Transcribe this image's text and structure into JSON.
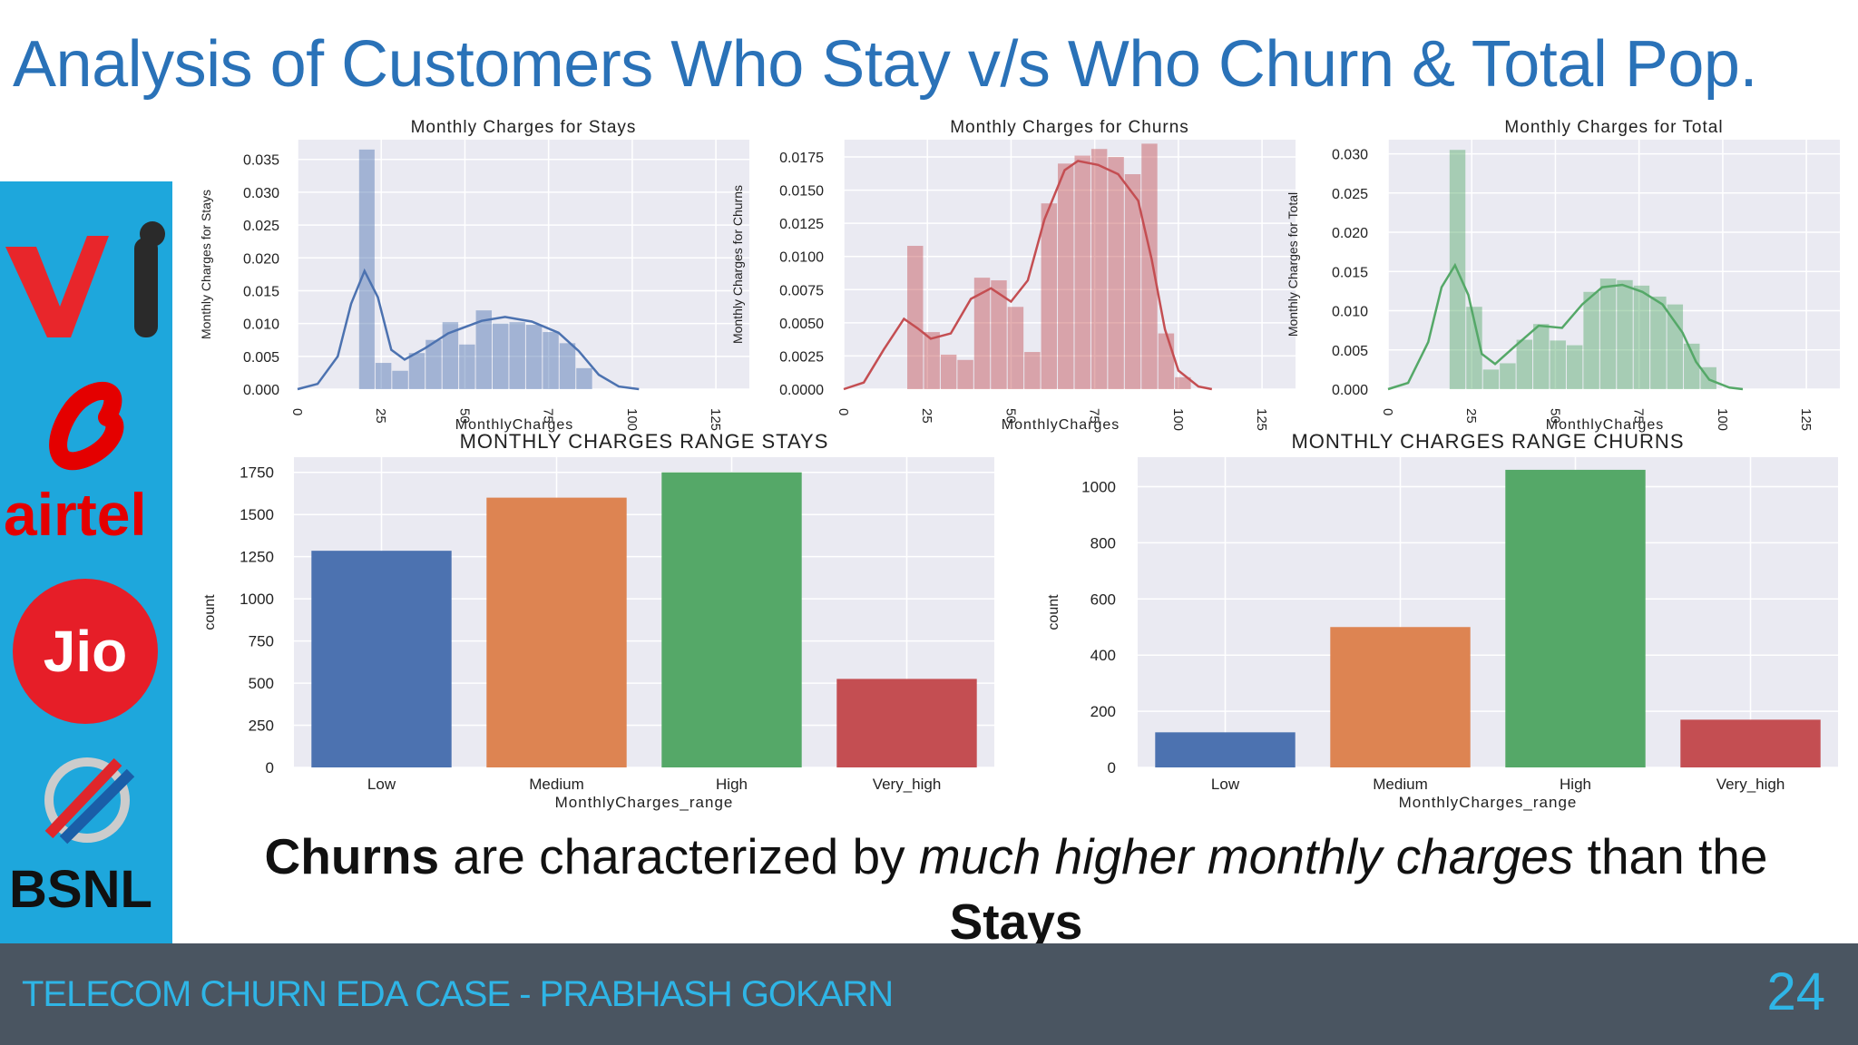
{
  "slide": {
    "title": "Analysis of Customers Who Stay v/s Who Churn & Total Pop.",
    "caption_parts": [
      "Churns",
      " are characterized  by ",
      "much higher monthly charges",
      " than the ",
      "Stays"
    ],
    "footer_text": "TELECOM CHURN EDA CASE - PRABHASH GOKARN",
    "page_number": "24",
    "logos": [
      "Vi",
      "airtel",
      "Jio",
      "BSNL"
    ]
  },
  "colors": {
    "title": "#2a72b8",
    "footer_bg": "#4a5561",
    "footer_text": "#2fb5e6",
    "logo_strip": "#1ea7dc",
    "plot_bg": "#eaeaf2",
    "stays": "#4c72b0",
    "churns": "#c44e52",
    "total": "#55a868",
    "bar_colors": [
      "#4c72b0",
      "#dd8452",
      "#55a868",
      "#c44e52"
    ]
  },
  "chart_data": [
    {
      "type": "bar",
      "subtype": "histogram-with-kde",
      "title": "Monthly Charges for Stays",
      "xlabel": "MonthlyCharges",
      "ylabel": "Monthly Charges for Stays",
      "color": "#4c72b0",
      "xlim": [
        0,
        135
      ],
      "ylim": [
        0,
        0.038
      ],
      "xticks": [
        0,
        25,
        50,
        75,
        100,
        125
      ],
      "xtick_labels": [
        "0",
        "25",
        "50",
        "75",
        "100",
        "125"
      ],
      "yticks": [
        0,
        0.005,
        0.01,
        0.015,
        0.02,
        0.025,
        0.03,
        0.035
      ],
      "ytick_labels": [
        "0.000",
        "0.005",
        "0.010",
        "0.015",
        "0.020",
        "0.025",
        "0.030",
        "0.035"
      ],
      "bins": [
        {
          "x0": 18.25,
          "x1": 23.15,
          "y": 0.0365
        },
        {
          "x0": 23.15,
          "x1": 28.15,
          "y": 0.004
        },
        {
          "x0": 28.15,
          "x1": 33.15,
          "y": 0.0028
        },
        {
          "x0": 33.15,
          "x1": 38.15,
          "y": 0.0055
        },
        {
          "x0": 38.15,
          "x1": 43.15,
          "y": 0.0075
        },
        {
          "x0": 43.15,
          "x1": 48.15,
          "y": 0.0102
        },
        {
          "x0": 48.15,
          "x1": 53.15,
          "y": 0.0068
        },
        {
          "x0": 53.15,
          "x1": 58.15,
          "y": 0.012
        },
        {
          "x0": 58.15,
          "x1": 63.15,
          "y": 0.01
        },
        {
          "x0": 63.15,
          "x1": 68.15,
          "y": 0.0102
        },
        {
          "x0": 68.15,
          "x1": 73.15,
          "y": 0.0098
        },
        {
          "x0": 73.15,
          "x1": 78.15,
          "y": 0.0087
        },
        {
          "x0": 78.15,
          "x1": 83.15,
          "y": 0.007
        },
        {
          "x0": 83.15,
          "x1": 88.15,
          "y": 0.0032
        }
      ],
      "kde": [
        [
          0,
          0
        ],
        [
          6,
          0.0008
        ],
        [
          12,
          0.005
        ],
        [
          16,
          0.013
        ],
        [
          20,
          0.018
        ],
        [
          24,
          0.014
        ],
        [
          28,
          0.006
        ],
        [
          32,
          0.0045
        ],
        [
          38,
          0.0062
        ],
        [
          45,
          0.0085
        ],
        [
          55,
          0.0104
        ],
        [
          62,
          0.011
        ],
        [
          70,
          0.0103
        ],
        [
          78,
          0.0086
        ],
        [
          84,
          0.0058
        ],
        [
          90,
          0.0022
        ],
        [
          96,
          0.0004
        ],
        [
          102,
          0
        ]
      ]
    },
    {
      "type": "bar",
      "subtype": "histogram-with-kde",
      "title": "Monthly Charges for Churns",
      "xlabel": "MonthlyCharges",
      "ylabel": "Monthly Charges for Churns",
      "color": "#c44e52",
      "xlim": [
        0,
        135
      ],
      "ylim": [
        0,
        0.0188
      ],
      "xticks": [
        0,
        25,
        50,
        75,
        100,
        125
      ],
      "xtick_labels": [
        "0",
        "25",
        "50",
        "75",
        "100",
        "125"
      ],
      "yticks": [
        0,
        0.0025,
        0.005,
        0.0075,
        0.01,
        0.0125,
        0.015,
        0.0175
      ],
      "ytick_labels": [
        "0.0000",
        "0.0025",
        "0.0050",
        "0.0075",
        "0.0100",
        "0.0125",
        "0.0150",
        "0.0175"
      ],
      "bins": [
        {
          "x0": 18.85,
          "x1": 23.85,
          "y": 0.0108
        },
        {
          "x0": 23.85,
          "x1": 28.85,
          "y": 0.0043
        },
        {
          "x0": 28.85,
          "x1": 33.85,
          "y": 0.0026
        },
        {
          "x0": 33.85,
          "x1": 38.85,
          "y": 0.0022
        },
        {
          "x0": 38.85,
          "x1": 43.85,
          "y": 0.0084
        },
        {
          "x0": 43.85,
          "x1": 48.85,
          "y": 0.0082
        },
        {
          "x0": 48.85,
          "x1": 53.85,
          "y": 0.0062
        },
        {
          "x0": 53.85,
          "x1": 58.85,
          "y": 0.0028
        },
        {
          "x0": 58.85,
          "x1": 63.85,
          "y": 0.014
        },
        {
          "x0": 63.85,
          "x1": 68.85,
          "y": 0.017
        },
        {
          "x0": 68.85,
          "x1": 73.85,
          "y": 0.0176
        },
        {
          "x0": 73.85,
          "x1": 78.85,
          "y": 0.0181
        },
        {
          "x0": 78.85,
          "x1": 83.85,
          "y": 0.0175
        },
        {
          "x0": 83.85,
          "x1": 88.85,
          "y": 0.0162
        },
        {
          "x0": 88.85,
          "x1": 93.85,
          "y": 0.0185
        },
        {
          "x0": 93.85,
          "x1": 98.85,
          "y": 0.0042
        },
        {
          "x0": 98.85,
          "x1": 103.85,
          "y": 0.0009
        }
      ],
      "kde": [
        [
          0,
          0
        ],
        [
          6,
          0.0005
        ],
        [
          12,
          0.003
        ],
        [
          18,
          0.0053
        ],
        [
          22,
          0.0046
        ],
        [
          26,
          0.0038
        ],
        [
          32,
          0.0042
        ],
        [
          38,
          0.0068
        ],
        [
          44,
          0.0076
        ],
        [
          50,
          0.0066
        ],
        [
          55,
          0.0082
        ],
        [
          60,
          0.0128
        ],
        [
          66,
          0.0165
        ],
        [
          70,
          0.0172
        ],
        [
          76,
          0.0169
        ],
        [
          82,
          0.0162
        ],
        [
          88,
          0.0142
        ],
        [
          92,
          0.0098
        ],
        [
          96,
          0.0045
        ],
        [
          100,
          0.0014
        ],
        [
          106,
          0.0002
        ],
        [
          110,
          0
        ]
      ]
    },
    {
      "type": "bar",
      "subtype": "histogram-with-kde",
      "title": "Monthly Charges for Total",
      "xlabel": "MonthlyCharges",
      "ylabel": "Monthly Charges for Total",
      "color": "#55a868",
      "xlim": [
        0,
        135
      ],
      "ylim": [
        0,
        0.0318
      ],
      "xticks": [
        0,
        25,
        50,
        75,
        100,
        125
      ],
      "xtick_labels": [
        "0",
        "25",
        "50",
        "75",
        "100",
        "125"
      ],
      "yticks": [
        0,
        0.005,
        0.01,
        0.015,
        0.02,
        0.025,
        0.03
      ],
      "ytick_labels": [
        "0.000",
        "0.005",
        "0.010",
        "0.015",
        "0.020",
        "0.025",
        "0.030"
      ],
      "bins": [
        {
          "x0": 18.25,
          "x1": 23.25,
          "y": 0.0305
        },
        {
          "x0": 23.25,
          "x1": 28.25,
          "y": 0.0105
        },
        {
          "x0": 28.25,
          "x1": 33.25,
          "y": 0.0025
        },
        {
          "x0": 33.25,
          "x1": 38.25,
          "y": 0.0033
        },
        {
          "x0": 38.25,
          "x1": 43.25,
          "y": 0.0063
        },
        {
          "x0": 43.25,
          "x1": 48.25,
          "y": 0.0083
        },
        {
          "x0": 48.25,
          "x1": 53.25,
          "y": 0.0062
        },
        {
          "x0": 53.25,
          "x1": 58.25,
          "y": 0.0056
        },
        {
          "x0": 58.25,
          "x1": 63.25,
          "y": 0.0124
        },
        {
          "x0": 63.25,
          "x1": 68.25,
          "y": 0.0141
        },
        {
          "x0": 68.25,
          "x1": 73.25,
          "y": 0.0139
        },
        {
          "x0": 73.25,
          "x1": 78.25,
          "y": 0.0132
        },
        {
          "x0": 78.25,
          "x1": 83.25,
          "y": 0.0118
        },
        {
          "x0": 83.25,
          "x1": 88.25,
          "y": 0.0108
        },
        {
          "x0": 88.25,
          "x1": 93.25,
          "y": 0.0058
        },
        {
          "x0": 93.25,
          "x1": 98.25,
          "y": 0.0028
        }
      ],
      "kde": [
        [
          0,
          0
        ],
        [
          6,
          0.0008
        ],
        [
          12,
          0.006
        ],
        [
          16,
          0.013
        ],
        [
          20,
          0.0158
        ],
        [
          24,
          0.012
        ],
        [
          28,
          0.0045
        ],
        [
          32,
          0.0032
        ],
        [
          38,
          0.0055
        ],
        [
          45,
          0.0081
        ],
        [
          52,
          0.0078
        ],
        [
          58,
          0.0108
        ],
        [
          64,
          0.013
        ],
        [
          70,
          0.0133
        ],
        [
          76,
          0.0124
        ],
        [
          82,
          0.0108
        ],
        [
          88,
          0.0072
        ],
        [
          92,
          0.0035
        ],
        [
          96,
          0.0012
        ],
        [
          102,
          0.0002
        ],
        [
          106,
          0
        ]
      ]
    },
    {
      "type": "bar",
      "title": "MONTHLY CHARGES RANGE STAYS",
      "xlabel": "MonthlyCharges_range",
      "ylabel": "count",
      "categories": [
        "Low",
        "Medium",
        "High",
        "Very_high"
      ],
      "values": [
        1285,
        1600,
        1750,
        525
      ],
      "ylim": [
        0,
        1840
      ],
      "yticks": [
        0,
        250,
        500,
        750,
        1000,
        1250,
        1500,
        1750
      ]
    },
    {
      "type": "bar",
      "title": "MONTHLY CHARGES RANGE CHURNS",
      "xlabel": "MonthlyCharges_range",
      "ylabel": "count",
      "categories": [
        "Low",
        "Medium",
        "High",
        "Very_high"
      ],
      "values": [
        125,
        500,
        1060,
        170
      ],
      "ylim": [
        0,
        1105
      ],
      "yticks": [
        0,
        200,
        400,
        600,
        800,
        1000
      ]
    }
  ]
}
